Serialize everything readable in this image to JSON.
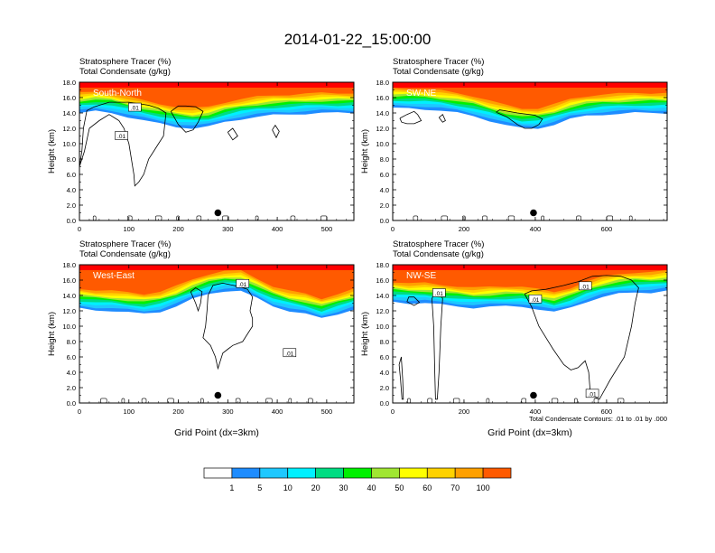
{
  "title": "2014-01-22_15:00:00",
  "colors": {
    "levels": [
      "#ffffff",
      "#1e8cff",
      "#1ec8ff",
      "#00f0ff",
      "#00dc82",
      "#00f000",
      "#a0e632",
      "#ffff00",
      "#ffd200",
      "#ffa000",
      "#ff5a00",
      "#ff0000"
    ],
    "white": "#ffffff",
    "contour": "#000000"
  },
  "chart_data": [
    {
      "type": "heatmap",
      "title_line1": "Stratosphere Tracer   (%)",
      "title_line2": "Total Condensate   (g/kg)",
      "panel_label": "South-North",
      "ylabel": "Height (km)",
      "xlabel": "",
      "xlim": [
        0,
        555
      ],
      "ylim": [
        0,
        18
      ],
      "x_ticks": [
        "0",
        "100",
        "200",
        "300",
        "400",
        "500"
      ],
      "x_tick_values": [
        0,
        100,
        200,
        300,
        400,
        500
      ],
      "y_ticks": [
        "0.0",
        "2.0",
        "4.0",
        "6.0",
        "8.0",
        "10.0",
        "12.0",
        "14.0",
        "16.0",
        "18.0"
      ],
      "tracer_base_km": [
        14.0,
        14.2,
        14.0,
        13.5,
        13.0,
        12.6,
        12.2,
        12.0,
        12.2,
        12.8,
        13.2,
        13.5,
        13.7,
        13.8,
        13.9,
        14.0,
        14.0,
        14.0
      ],
      "contour_labels": [
        {
          "text": ".01",
          "x": 112,
          "y": 14.7
        },
        {
          "text": ".01",
          "x": 85,
          "y": 11.0
        }
      ],
      "marker": {
        "x": 280,
        "y": 1.0
      }
    },
    {
      "type": "heatmap",
      "title_line1": "Stratosphere Tracer   (%)",
      "title_line2": "Total Condensate   (g/kg)",
      "panel_label": "SW-NE",
      "ylabel": "Height (km)",
      "xlabel": "",
      "xlim": [
        0,
        770
      ],
      "ylim": [
        0,
        18
      ],
      "x_ticks": [
        "0",
        "200",
        "400",
        "600"
      ],
      "x_tick_values": [
        0,
        200,
        400,
        600
      ],
      "y_ticks": [
        "0.0",
        "2.0",
        "4.0",
        "6.0",
        "8.0",
        "10.0",
        "12.0",
        "14.0",
        "16.0",
        "18.0"
      ],
      "tracer_base_km": [
        14.6,
        14.6,
        14.5,
        14.3,
        14.0,
        13.6,
        13.0,
        12.4,
        12.0,
        12.0,
        12.5,
        13.2,
        13.6,
        13.8,
        13.9,
        14.0,
        14.0,
        14.0
      ],
      "contour_labels": [],
      "marker": {
        "x": 395,
        "y": 1.0
      }
    },
    {
      "type": "heatmap",
      "title_line1": "Stratosphere Tracer   (%)",
      "title_line2": "Total Condensate   (g/kg)",
      "panel_label": "West-East",
      "ylabel": "Height (km)",
      "xlabel": "Grid Point (dx=3km)",
      "xlim": [
        0,
        555
      ],
      "ylim": [
        0,
        18
      ],
      "x_ticks": [
        "0",
        "100",
        "200",
        "300",
        "400",
        "500"
      ],
      "x_tick_values": [
        0,
        100,
        200,
        300,
        400,
        500
      ],
      "y_ticks": [
        "0.0",
        "2.0",
        "4.0",
        "6.0",
        "8.0",
        "10.0",
        "12.0",
        "14.0",
        "16.0",
        "18.0"
      ],
      "tracer_base_km": [
        12.3,
        12.1,
        12.0,
        11.8,
        11.6,
        11.9,
        12.6,
        13.5,
        14.2,
        14.6,
        14.6,
        13.6,
        12.6,
        12.0,
        11.6,
        11.0,
        11.6,
        12.2
      ],
      "contour_labels": [
        {
          "text": ".01",
          "x": 330,
          "y": 15.5
        },
        {
          "text": ".01",
          "x": 425,
          "y": 6.5
        }
      ],
      "marker": {
        "x": 280,
        "y": 1.0
      }
    },
    {
      "type": "heatmap",
      "title_line1": "Stratosphere Tracer   (%)",
      "title_line2": "Total Condensate   (g/kg)",
      "panel_label": "NW-SE",
      "ylabel": "Height (km)",
      "xlabel": "Grid Point (dx=3km)",
      "xlim": [
        0,
        770
      ],
      "ylim": [
        0,
        18
      ],
      "x_ticks": [
        "0",
        "200",
        "400",
        "600"
      ],
      "x_tick_values": [
        0,
        200,
        400,
        600
      ],
      "y_ticks": [
        "0.0",
        "2.0",
        "4.0",
        "6.0",
        "8.0",
        "10.0",
        "12.0",
        "14.0",
        "16.0",
        "18.0"
      ],
      "tracer_base_km": [
        13.2,
        13.0,
        13.0,
        12.8,
        12.6,
        12.4,
        12.5,
        12.6,
        12.6,
        12.2,
        11.8,
        12.4,
        13.2,
        13.8,
        14.2,
        14.4,
        14.4,
        14.6
      ],
      "contour_labels": [
        {
          "text": ".01",
          "x": 130,
          "y": 14.3
        },
        {
          "text": ".01",
          "x": 400,
          "y": 13.5
        },
        {
          "text": ".01",
          "x": 540,
          "y": 15.2
        },
        {
          "text": ".01",
          "x": 560,
          "y": 1.2
        }
      ],
      "marker": {
        "x": 395,
        "y": 1.0
      },
      "footnote": "Total Condensate Contours: .01 to .01 by .000"
    }
  ],
  "colorbar": {
    "labels": [
      "1",
      "5",
      "10",
      "20",
      "30",
      "40",
      "50",
      "60",
      "70",
      "100"
    ]
  }
}
